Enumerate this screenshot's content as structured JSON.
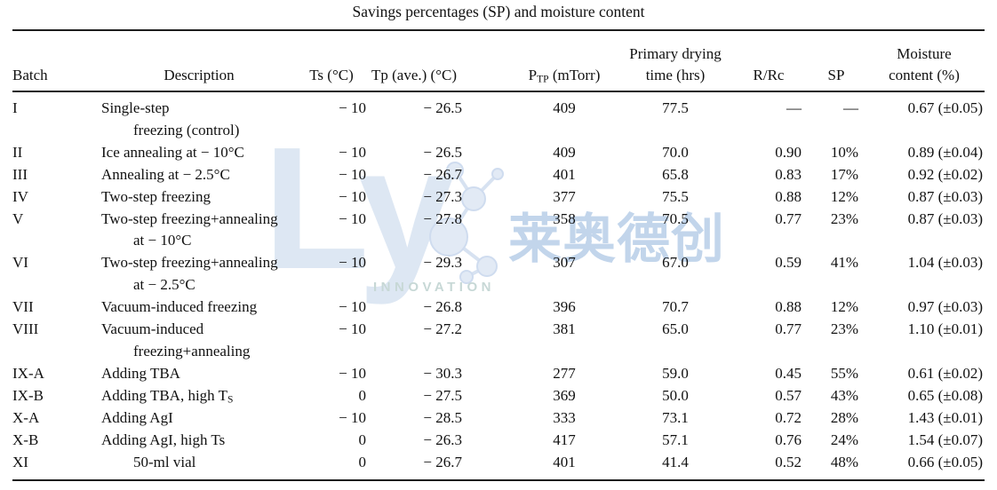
{
  "title": "Savings percentages (SP) and moisture content",
  "watermark": {
    "brand": "Ly",
    "cjk": "莱奥德创",
    "tagline": "INNOVATION",
    "brand_color": "#dde7f3",
    "cjk_color": "#c2d5eb",
    "tagline_color": "#c7d8d6"
  },
  "table": {
    "columns": [
      {
        "key": "batch",
        "label": "Batch",
        "name": "col-header-batch"
      },
      {
        "key": "desc",
        "label": "Description",
        "name": "col-header-description"
      },
      {
        "key": "ts",
        "label": "Ts (°C)",
        "name": "col-header-ts"
      },
      {
        "key": "tp",
        "label": "Tp (ave.) (°C)",
        "name": "col-header-tp"
      },
      {
        "key": "ptp",
        "label": "P~TP~ (mTorr)",
        "name": "col-header-ptp"
      },
      {
        "key": "time",
        "label": "Primary drying|time (hrs)",
        "name": "col-header-drying-time"
      },
      {
        "key": "rrc",
        "label": "R/Rc",
        "name": "col-header-rrc"
      },
      {
        "key": "sp",
        "label": "SP",
        "name": "col-header-sp"
      },
      {
        "key": "moisture",
        "label": "Moisture|content (%)",
        "name": "col-header-moisture"
      }
    ],
    "rows": [
      {
        "batch": "I",
        "desc": [
          "Single-step",
          "freezing (control)"
        ],
        "ts": "− 10",
        "tp": "− 26.5",
        "ptp": "409",
        "time": "77.5",
        "rrc": "—",
        "sp": "—",
        "moisture": "0.67 (±0.05)"
      },
      {
        "batch": "II",
        "desc": [
          "Ice annealing at − 10°C"
        ],
        "ts": "− 10",
        "tp": "− 26.5",
        "ptp": "409",
        "time": "70.0",
        "rrc": "0.90",
        "sp": "10%",
        "moisture": "0.89 (±0.04)"
      },
      {
        "batch": "III",
        "desc": [
          "Annealing at − 2.5°C"
        ],
        "ts": "− 10",
        "tp": "− 26.7",
        "ptp": "401",
        "time": "65.8",
        "rrc": "0.83",
        "sp": "17%",
        "moisture": "0.92 (±0.02)"
      },
      {
        "batch": "IV",
        "desc": [
          "Two-step freezing"
        ],
        "ts": "− 10",
        "tp": "− 27.3",
        "ptp": "377",
        "time": "75.5",
        "rrc": "0.88",
        "sp": "12%",
        "moisture": "0.87 (±0.03)"
      },
      {
        "batch": "V",
        "desc": [
          "Two-step freezing+annealing",
          "at − 10°C"
        ],
        "ts": "− 10",
        "tp": "− 27.8",
        "ptp": "358",
        "time": "70.5",
        "rrc": "0.77",
        "sp": "23%",
        "moisture": "0.87 (±0.03)"
      },
      {
        "batch": "VI",
        "desc": [
          "Two-step freezing+annealing",
          "at − 2.5°C"
        ],
        "ts": "− 10",
        "tp": "− 29.3",
        "ptp": "307",
        "time": "67.0",
        "rrc": "0.59",
        "sp": "41%",
        "moisture": "1.04 (±0.03)"
      },
      {
        "batch": "VII",
        "desc": [
          "Vacuum-induced freezing"
        ],
        "ts": "− 10",
        "tp": "− 26.8",
        "ptp": "396",
        "time": "70.7",
        "rrc": "0.88",
        "sp": "12%",
        "moisture": "0.97 (±0.03)"
      },
      {
        "batch": "VIII",
        "desc": [
          "Vacuum-induced",
          "freezing+annealing"
        ],
        "ts": "− 10",
        "tp": "− 27.2",
        "ptp": "381",
        "time": "65.0",
        "rrc": "0.77",
        "sp": "23%",
        "moisture": "1.10 (±0.01)"
      },
      {
        "batch": "IX-A",
        "desc": [
          "Adding TBA"
        ],
        "ts": "− 10",
        "tp": "− 30.3",
        "ptp": "277",
        "time": "59.0",
        "rrc": "0.45",
        "sp": "55%",
        "moisture": "0.61 (±0.02)"
      },
      {
        "batch": "IX-B",
        "desc": [
          "Adding TBA, high T~S~"
        ],
        "ts": "0",
        "tp": "− 27.5",
        "ptp": "369",
        "time": "50.0",
        "rrc": "0.57",
        "sp": "43%",
        "moisture": "0.65 (±0.08)"
      },
      {
        "batch": "X-A",
        "desc": [
          "Adding AgI"
        ],
        "ts": "− 10",
        "tp": "− 28.5",
        "ptp": "333",
        "time": "73.1",
        "rrc": "0.72",
        "sp": "28%",
        "moisture": "1.43 (±0.01)"
      },
      {
        "batch": "X-B",
        "desc": [
          "Adding AgI, high Ts"
        ],
        "ts": "0",
        "tp": "− 26.3",
        "ptp": "417",
        "time": "57.1",
        "rrc": "0.76",
        "sp": "24%",
        "moisture": "1.54 (±0.07)"
      },
      {
        "batch": "XI",
        "desc": [
          "50-ml vial"
        ],
        "indent": true,
        "ts": "0",
        "tp": "− 26.7",
        "ptp": "401",
        "time": "41.4",
        "rrc": "0.52",
        "sp": "48%",
        "moisture": "0.66 (±0.05)"
      }
    ]
  }
}
